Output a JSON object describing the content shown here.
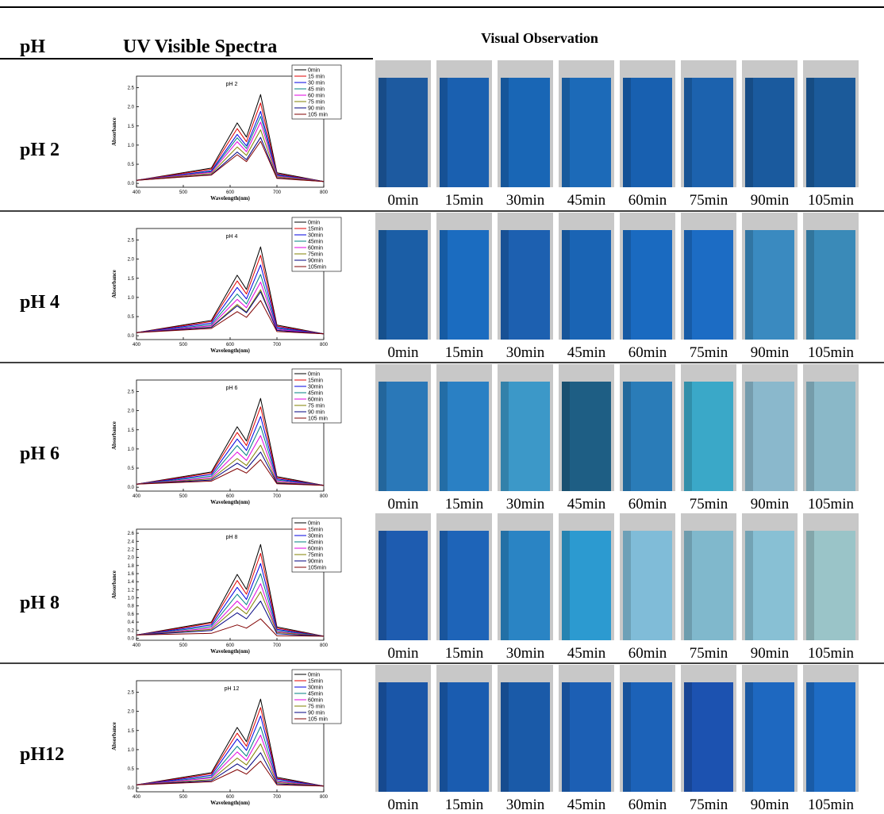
{
  "header": {
    "ph": "pH",
    "spectra": "UV Visible Spectra",
    "visual": "Visual Observation"
  },
  "rows": [
    {
      "ph": "pH 2",
      "photos": [
        {
          "label": "0min",
          "color": "#1d5aa0"
        },
        {
          "label": "15min",
          "color": "#1a60b0"
        },
        {
          "label": "30min",
          "color": "#1966b5"
        },
        {
          "label": "45min",
          "color": "#1c6ab8"
        },
        {
          "label": "60min",
          "color": "#1860b0"
        },
        {
          "label": "75min",
          "color": "#1c62ae"
        },
        {
          "label": "90min",
          "color": "#1a5a9e"
        },
        {
          "label": "105min",
          "color": "#1b5a9a"
        }
      ]
    },
    {
      "ph": "pH 4",
      "photos": [
        {
          "label": "0min",
          "color": "#1b5ea6"
        },
        {
          "label": "15min",
          "color": "#1b6cc0"
        },
        {
          "label": "30min",
          "color": "#1d60b0"
        },
        {
          "label": "45min",
          "color": "#1a64b4"
        },
        {
          "label": "60min",
          "color": "#1a6ac0"
        },
        {
          "label": "75min",
          "color": "#1c6cc4"
        },
        {
          "label": "90min",
          "color": "#3a8ac0"
        },
        {
          "label": "105min",
          "color": "#3a8ab8"
        }
      ]
    },
    {
      "ph": "pH 6",
      "photos": [
        {
          "label": "0min",
          "color": "#2a78b8"
        },
        {
          "label": "15min",
          "color": "#2a80c4"
        },
        {
          "label": "30min",
          "color": "#3c98c8"
        },
        {
          "label": "45min",
          "color": "#1e5e84"
        },
        {
          "label": "60min",
          "color": "#2a7cb8"
        },
        {
          "label": "75min",
          "color": "#3aa8c8"
        },
        {
          "label": "90min",
          "color": "#8ab8cc"
        },
        {
          "label": "105min",
          "color": "#8ab8c8"
        }
      ]
    },
    {
      "ph": "pH 8",
      "photos": [
        {
          "label": "0min",
          "color": "#1e5cb0"
        },
        {
          "label": "15min",
          "color": "#1e64b8"
        },
        {
          "label": "30min",
          "color": "#2a84c4"
        },
        {
          "label": "45min",
          "color": "#2c9ad0"
        },
        {
          "label": "60min",
          "color": "#80bcd8"
        },
        {
          "label": "75min",
          "color": "#80b8cc"
        },
        {
          "label": "90min",
          "color": "#88c0d4"
        },
        {
          "label": "105min",
          "color": "#9ac4c8"
        }
      ]
    },
    {
      "ph": "pH12",
      "photos": [
        {
          "label": "0min",
          "color": "#1a56a8"
        },
        {
          "label": "15min",
          "color": "#1a5cb0"
        },
        {
          "label": "30min",
          "color": "#1a5aa8"
        },
        {
          "label": "45min",
          "color": "#1c5fb4"
        },
        {
          "label": "60min",
          "color": "#1c62b8"
        },
        {
          "label": "75min",
          "color": "#1c52b0"
        },
        {
          "label": "90min",
          "color": "#1e68c0"
        },
        {
          "label": "105min",
          "color": "#1e6cc4"
        }
      ]
    }
  ],
  "chart_data": [
    {
      "type": "line",
      "title": "pH 2",
      "x_label": "Wavelength(nm)",
      "y_label": "Absorbance",
      "x": [
        400,
        560,
        615,
        635,
        665,
        700,
        800
      ],
      "xlim": [
        400,
        800
      ],
      "xticks": [
        400,
        500,
        600,
        700,
        800
      ],
      "ylim": [
        -0.1,
        2.8
      ],
      "yticks": [
        {
          "value": 0,
          "label": "0.0"
        },
        0.5,
        {
          "value": 1,
          "label": "1.0"
        },
        1.5,
        {
          "value": 2,
          "label": "2.0"
        },
        2.5
      ],
      "series": [
        {
          "name": "0min",
          "color": "#000000",
          "values": [
            0.08,
            0.4,
            1.58,
            1.21,
            2.32,
            0.28,
            0.05
          ]
        },
        {
          "name": "15 min",
          "color": "#e00000",
          "values": [
            0.08,
            0.37,
            1.43,
            1.09,
            2.1,
            0.25,
            0.05
          ]
        },
        {
          "name": "30 min",
          "color": "#0000e0",
          "values": [
            0.08,
            0.33,
            1.28,
            0.98,
            1.88,
            0.23,
            0.05
          ]
        },
        {
          "name": "45 min",
          "color": "#008080",
          "values": [
            0.08,
            0.31,
            1.19,
            0.91,
            1.75,
            0.21,
            0.05
          ]
        },
        {
          "name": "60 min",
          "color": "#e000e0",
          "values": [
            0.08,
            0.29,
            1.09,
            0.83,
            1.6,
            0.19,
            0.05
          ]
        },
        {
          "name": "75 min",
          "color": "#808000",
          "values": [
            0.08,
            0.26,
            0.95,
            0.73,
            1.4,
            0.17,
            0.05
          ]
        },
        {
          "name": "90 min",
          "color": "#000080",
          "values": [
            0.08,
            0.23,
            0.82,
            0.62,
            1.2,
            0.14,
            0.05
          ]
        },
        {
          "name": "105 min",
          "color": "#800000",
          "values": [
            0.08,
            0.22,
            0.75,
            0.57,
            1.1,
            0.13,
            0.05
          ]
        }
      ]
    },
    {
      "type": "line",
      "title": "pH 4",
      "x_label": "Wavelength(nm)",
      "y_label": "Absorbance",
      "x": [
        400,
        560,
        615,
        635,
        665,
        700,
        800
      ],
      "xlim": [
        400,
        800
      ],
      "xticks": [
        400,
        500,
        600,
        700,
        800
      ],
      "ylim": [
        -0.1,
        2.8
      ],
      "yticks": [
        {
          "value": 0,
          "label": "0.0"
        },
        0.5,
        {
          "value": 1,
          "label": "1.0"
        },
        1.5,
        {
          "value": 2,
          "label": "2.0"
        },
        2.5
      ],
      "series": [
        {
          "name": "0min",
          "color": "#000000",
          "values": [
            0.08,
            0.4,
            1.58,
            1.21,
            2.32,
            0.28,
            0.05
          ]
        },
        {
          "name": "15min",
          "color": "#e00000",
          "values": [
            0.08,
            0.37,
            1.43,
            1.09,
            2.1,
            0.25,
            0.05
          ]
        },
        {
          "name": "30min",
          "color": "#0000e0",
          "values": [
            0.08,
            0.33,
            1.26,
            0.96,
            1.85,
            0.22,
            0.05
          ]
        },
        {
          "name": "45min",
          "color": "#008080",
          "values": [
            0.08,
            0.29,
            1.09,
            0.83,
            1.6,
            0.19,
            0.05
          ]
        },
        {
          "name": "60min",
          "color": "#e000e0",
          "values": [
            0.08,
            0.26,
            0.95,
            0.73,
            1.4,
            0.17,
            0.05
          ]
        },
        {
          "name": "75min",
          "color": "#808000",
          "values": [
            0.08,
            0.23,
            0.82,
            0.62,
            1.2,
            0.14,
            0.05
          ]
        },
        {
          "name": "90min",
          "color": "#000080",
          "values": [
            0.08,
            0.22,
            0.78,
            0.6,
            1.15,
            0.14,
            0.05
          ]
        },
        {
          "name": "105min",
          "color": "#800000",
          "values": [
            0.08,
            0.19,
            0.63,
            0.48,
            0.92,
            0.11,
            0.05
          ]
        }
      ]
    },
    {
      "type": "line",
      "title": "pH 6",
      "x_label": "Wavelength(nm)",
      "y_label": "Absorbance",
      "x": [
        400,
        560,
        615,
        635,
        665,
        700,
        800
      ],
      "xlim": [
        400,
        800
      ],
      "xticks": [
        400,
        500,
        600,
        700,
        800
      ],
      "ylim": [
        -0.1,
        2.8
      ],
      "yticks": [
        {
          "value": 0,
          "label": "0.0"
        },
        0.5,
        {
          "value": 1,
          "label": "1.0"
        },
        1.5,
        {
          "value": 2,
          "label": "2.0"
        },
        2.5
      ],
      "series": [
        {
          "name": "0min",
          "color": "#000000",
          "values": [
            0.08,
            0.4,
            1.58,
            1.21,
            2.32,
            0.28,
            0.05
          ]
        },
        {
          "name": "15min",
          "color": "#e00000",
          "values": [
            0.08,
            0.37,
            1.43,
            1.09,
            2.1,
            0.25,
            0.05
          ]
        },
        {
          "name": "30min",
          "color": "#0000e0",
          "values": [
            0.08,
            0.33,
            1.26,
            0.96,
            1.85,
            0.22,
            0.05
          ]
        },
        {
          "name": "45min",
          "color": "#008080",
          "values": [
            0.08,
            0.29,
            1.09,
            0.83,
            1.6,
            0.19,
            0.05
          ]
        },
        {
          "name": "60min",
          "color": "#e000e0",
          "values": [
            0.08,
            0.25,
            0.92,
            0.7,
            1.35,
            0.16,
            0.05
          ]
        },
        {
          "name": "75 min",
          "color": "#808000",
          "values": [
            0.08,
            0.22,
            0.75,
            0.57,
            1.1,
            0.13,
            0.05
          ]
        },
        {
          "name": "90 min",
          "color": "#000080",
          "values": [
            0.08,
            0.19,
            0.63,
            0.48,
            0.92,
            0.11,
            0.05
          ]
        },
        {
          "name": "105 min",
          "color": "#800000",
          "values": [
            0.08,
            0.16,
            0.49,
            0.37,
            0.72,
            0.09,
            0.05
          ]
        }
      ]
    },
    {
      "type": "line",
      "title": "pH 8",
      "x_label": "Wavelength(nm)",
      "y_label": "Absorbance",
      "x": [
        400,
        560,
        615,
        635,
        665,
        700,
        800
      ],
      "xlim": [
        400,
        800
      ],
      "xticks": [
        400,
        500,
        600,
        700,
        800
      ],
      "ylim": [
        -0.05,
        2.7
      ],
      "yticks": [
        {
          "value": 0,
          "label": "0.0"
        },
        0.2,
        0.4,
        0.6,
        0.8,
        {
          "value": 1,
          "label": "1.0"
        },
        1.2,
        1.4,
        1.6,
        1.8,
        {
          "value": 2,
          "label": "2.0"
        },
        2.2,
        2.4,
        2.6
      ],
      "series": [
        {
          "name": "0min",
          "color": "#000000",
          "values": [
            0.08,
            0.4,
            1.58,
            1.21,
            2.32,
            0.28,
            0.05
          ]
        },
        {
          "name": "15min",
          "color": "#e00000",
          "values": [
            0.08,
            0.37,
            1.43,
            1.09,
            2.1,
            0.25,
            0.05
          ]
        },
        {
          "name": "30min",
          "color": "#0000e0",
          "values": [
            0.08,
            0.33,
            1.26,
            0.96,
            1.85,
            0.22,
            0.05
          ]
        },
        {
          "name": "45min",
          "color": "#008080",
          "values": [
            0.08,
            0.29,
            1.09,
            0.83,
            1.6,
            0.19,
            0.05
          ]
        },
        {
          "name": "60min",
          "color": "#e000e0",
          "values": [
            0.08,
            0.25,
            0.92,
            0.7,
            1.35,
            0.16,
            0.05
          ]
        },
        {
          "name": "75min",
          "color": "#808000",
          "values": [
            0.08,
            0.22,
            0.78,
            0.6,
            1.15,
            0.14,
            0.05
          ]
        },
        {
          "name": "90min",
          "color": "#000080",
          "values": [
            0.08,
            0.19,
            0.63,
            0.48,
            0.92,
            0.11,
            0.05
          ]
        },
        {
          "name": "105min",
          "color": "#800000",
          "values": [
            0.08,
            0.12,
            0.33,
            0.25,
            0.48,
            0.06,
            0.05
          ]
        }
      ]
    },
    {
      "type": "line",
      "title": "pH 12",
      "x_label": "Wavelength(nm)",
      "y_label": "Absorbance",
      "x": [
        400,
        560,
        615,
        635,
        665,
        700,
        800
      ],
      "xlim": [
        400,
        800
      ],
      "xticks": [
        400,
        500,
        600,
        700,
        800
      ],
      "ylim": [
        -0.1,
        2.8
      ],
      "yticks": [
        {
          "value": 0,
          "label": "0.0"
        },
        0.5,
        {
          "value": 1,
          "label": "1.0"
        },
        1.5,
        {
          "value": 2,
          "label": "2.0"
        },
        2.5
      ],
      "series": [
        {
          "name": "0min",
          "color": "#000000",
          "values": [
            0.08,
            0.4,
            1.58,
            1.21,
            2.32,
            0.28,
            0.05
          ]
        },
        {
          "name": "15min",
          "color": "#e00000",
          "values": [
            0.08,
            0.37,
            1.43,
            1.09,
            2.1,
            0.25,
            0.05
          ]
        },
        {
          "name": "30min",
          "color": "#0000e0",
          "values": [
            0.08,
            0.33,
            1.28,
            0.98,
            1.88,
            0.23,
            0.05
          ]
        },
        {
          "name": "45min",
          "color": "#008080",
          "values": [
            0.08,
            0.29,
            1.09,
            0.83,
            1.6,
            0.19,
            0.05
          ]
        },
        {
          "name": "60min",
          "color": "#e000e0",
          "values": [
            0.08,
            0.26,
            0.94,
            0.72,
            1.38,
            0.17,
            0.05
          ]
        },
        {
          "name": "75 min",
          "color": "#808000",
          "values": [
            0.08,
            0.22,
            0.78,
            0.6,
            1.15,
            0.14,
            0.05
          ]
        },
        {
          "name": "90 min",
          "color": "#000080",
          "values": [
            0.08,
            0.19,
            0.63,
            0.48,
            0.92,
            0.11,
            0.05
          ]
        },
        {
          "name": "105 min",
          "color": "#800000",
          "values": [
            0.08,
            0.16,
            0.48,
            0.36,
            0.7,
            0.08,
            0.05
          ]
        }
      ]
    }
  ]
}
